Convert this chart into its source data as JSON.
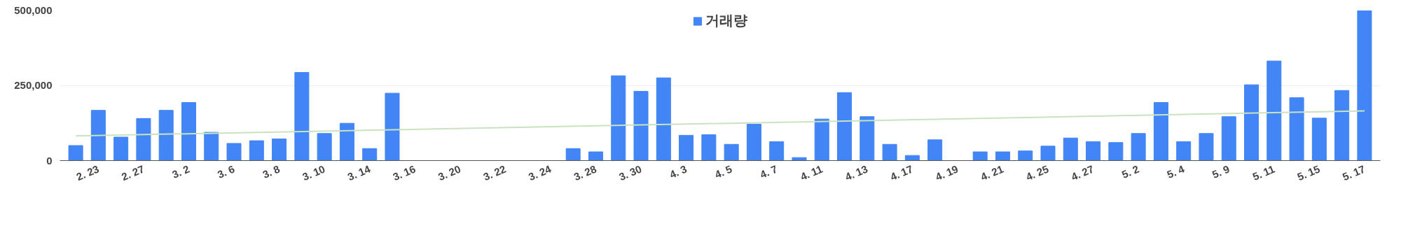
{
  "chart_data": {
    "type": "bar",
    "categories": [
      null,
      "2. 23",
      null,
      "2. 27",
      null,
      "3. 2",
      null,
      "3. 6",
      null,
      "3. 8",
      null,
      "3. 10",
      null,
      "3. 14",
      null,
      "3. 16",
      null,
      "3. 20",
      null,
      "3. 22",
      null,
      "3. 24",
      null,
      "3. 28",
      null,
      "3. 30",
      null,
      "4. 3",
      null,
      "4. 5",
      null,
      "4. 7",
      null,
      "4. 11",
      null,
      "4. 13",
      null,
      "4. 17",
      null,
      "4. 19",
      null,
      "4. 21",
      null,
      "4. 25",
      null,
      "4. 27",
      null,
      "5. 2",
      null,
      "5. 4",
      null,
      "5. 9",
      null,
      "5. 11",
      null,
      "5. 15",
      null,
      "5. 17"
    ],
    "series": [
      {
        "name": "거래량",
        "color": "#4285f4",
        "values": [
          50000,
          167000,
          78000,
          140000,
          167000,
          193000,
          94000,
          57000,
          66000,
          72000,
          293000,
          90000,
          124000,
          40000,
          224000,
          0,
          0,
          0,
          0,
          0,
          0,
          0,
          40000,
          29000,
          282000,
          230000,
          275000,
          84000,
          86000,
          54000,
          121000,
          63000,
          10000,
          138000,
          226000,
          146000,
          54000,
          17000,
          69000,
          0,
          29000,
          29000,
          32000,
          48000,
          75000,
          63000,
          60000,
          90000,
          193000,
          63000,
          90000,
          146000,
          252000,
          331000,
          209000,
          141000,
          233000,
          498000
        ]
      },
      {
        "type": "line",
        "color": "#c9e3c0",
        "values": [
          82000,
          null,
          null,
          null,
          null,
          null,
          null,
          null,
          null,
          null,
          null,
          null,
          null,
          null,
          null,
          null,
          null,
          null,
          null,
          null,
          null,
          null,
          null,
          null,
          null,
          null,
          null,
          null,
          null,
          null,
          null,
          null,
          null,
          null,
          null,
          null,
          null,
          null,
          null,
          null,
          null,
          null,
          null,
          null,
          null,
          null,
          null,
          null,
          null,
          null,
          null,
          null,
          null,
          null,
          null,
          null,
          null,
          165000
        ]
      }
    ],
    "ylim": [
      0,
      500000
    ],
    "yticks": [
      0,
      {
        "value": 250000,
        "label": "250,000"
      },
      {
        "value": 500000,
        "label": "500,000"
      }
    ],
    "grid": "y",
    "legend": "top"
  }
}
